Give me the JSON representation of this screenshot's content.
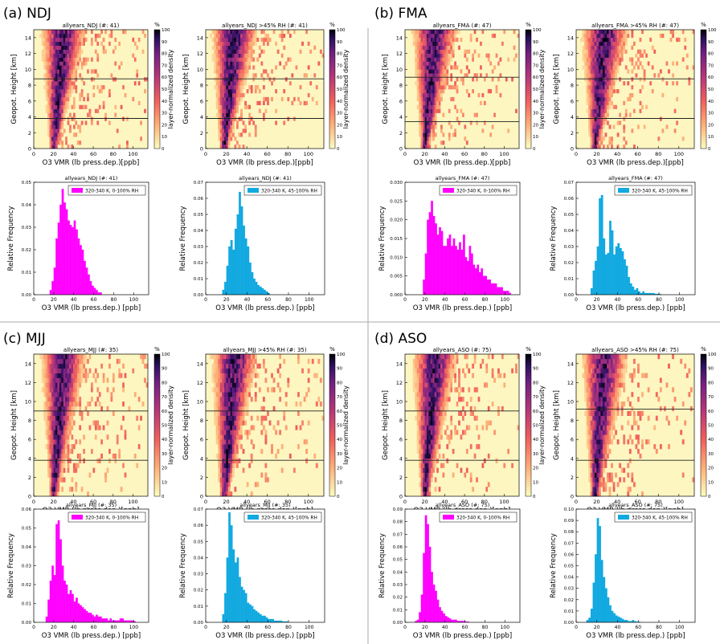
{
  "colors": {
    "magenta": "#ff00ff",
    "cyan": "#11a9e0",
    "heat_bg": "#fdf6c0"
  },
  "common": {
    "heat_xlabel": "O3 VMR (lb press.dep.)[ppb]",
    "heat_ylabel": "Geopot. Height [km]",
    "cbar_label": "layer-normalized density",
    "cbar_unit": "%",
    "cbar_ticks": [
      "0",
      "10",
      "20",
      "30",
      "40",
      "50",
      "60",
      "70",
      "80",
      "90",
      "100"
    ],
    "heat_xticks": [
      "0",
      "20",
      "40",
      "60",
      "80",
      "100"
    ],
    "heat_yticks": [
      "0",
      "2",
      "4",
      "6",
      "8",
      "10",
      "12",
      "14"
    ],
    "hist_xlabel": "O3 VMR (lb press.dep.) [ppb]",
    "hist_ylabel": "Relative Frequency",
    "hist_xticks": [
      "0",
      "20",
      "40",
      "60",
      "80",
      "100"
    ]
  },
  "chart_data": [
    {
      "type": "heatmap",
      "panel": "(a) NDJ",
      "title": "allyears_NDJ (#: 41)",
      "xlim": [
        0,
        115
      ],
      "ylim": [
        0,
        15
      ],
      "colorscale": "magma_r",
      "hlines_km": [
        8.8,
        3.8
      ]
    },
    {
      "type": "heatmap",
      "panel": "(a) NDJ",
      "title": "allyears_NDJ >45% RH (#: 41)",
      "xlim": [
        0,
        115
      ],
      "ylim": [
        0,
        15
      ],
      "colorscale": "magma_r",
      "hlines_km": [
        8.8,
        3.8
      ]
    },
    {
      "type": "bar",
      "panel": "(a) NDJ",
      "title": "allyears_NDJ (#: 41)",
      "legend": "320-340 K, 0-100% RH",
      "color": "magenta",
      "xlim": [
        0,
        115
      ],
      "ylim": [
        0,
        0.05
      ],
      "yticks": [
        "0.00",
        "0.01",
        "0.02",
        "0.03",
        "0.04",
        "0.05"
      ],
      "x": [
        16,
        18,
        20,
        22,
        24,
        26,
        28,
        30,
        32,
        34,
        36,
        38,
        40,
        42,
        44,
        46,
        48,
        50,
        52,
        54,
        56,
        58,
        60,
        62,
        64,
        66
      ],
      "values": [
        0.002,
        0.006,
        0.012,
        0.025,
        0.032,
        0.04,
        0.047,
        0.041,
        0.038,
        0.033,
        0.031,
        0.03,
        0.033,
        0.029,
        0.025,
        0.022,
        0.02,
        0.015,
        0.012,
        0.009,
        0.006,
        0.004,
        0.003,
        0.002,
        0.001,
        0.001
      ]
    },
    {
      "type": "bar",
      "panel": "(a) NDJ",
      "title": "allyears_NDJ (#: 41)",
      "legend": "320-340 K, 45-100% RH",
      "color": "cyan",
      "xlim": [
        0,
        115
      ],
      "ylim": [
        0,
        0.07
      ],
      "yticks": [
        "0.00",
        "0.01",
        "0.02",
        "0.03",
        "0.04",
        "0.05",
        "0.06",
        "0.07"
      ],
      "x": [
        16,
        18,
        20,
        22,
        24,
        26,
        28,
        30,
        32,
        34,
        36,
        38,
        40,
        42,
        44,
        46,
        48,
        50,
        52,
        54,
        56,
        58,
        60
      ],
      "values": [
        0.003,
        0.008,
        0.018,
        0.03,
        0.034,
        0.028,
        0.041,
        0.05,
        0.064,
        0.055,
        0.043,
        0.035,
        0.03,
        0.02,
        0.014,
        0.01,
        0.008,
        0.006,
        0.005,
        0.004,
        0.003,
        0.002,
        0.001
      ]
    },
    {
      "type": "heatmap",
      "panel": "(b) FMA",
      "title": "allyears_FMA (#: 47)",
      "xlim": [
        0,
        115
      ],
      "ylim": [
        0,
        15
      ],
      "colorscale": "magma_r",
      "hlines_km": [
        9.0,
        3.4
      ]
    },
    {
      "type": "heatmap",
      "panel": "(b) FMA",
      "title": "allyears_FMA >45% RH (#: 47)",
      "xlim": [
        0,
        115
      ],
      "ylim": [
        0,
        15
      ],
      "colorscale": "magma_r",
      "hlines_km": [
        8.8,
        3.8
      ]
    },
    {
      "type": "bar",
      "panel": "(b) FMA",
      "title": "allyears_FMA (#: 47)",
      "legend": "320-340 K, 0-100% RH",
      "color": "magenta",
      "xlim": [
        0,
        115
      ],
      "ylim": [
        0,
        0.03
      ],
      "yticks": [
        "0.000",
        "0.005",
        "0.010",
        "0.015",
        "0.020",
        "0.025",
        "0.030"
      ],
      "x": [
        18,
        20,
        22,
        24,
        26,
        28,
        30,
        32,
        34,
        36,
        38,
        40,
        42,
        44,
        46,
        48,
        50,
        52,
        54,
        56,
        58,
        60,
        62,
        64,
        66,
        68,
        70,
        72,
        74,
        76,
        78,
        80,
        82,
        84,
        86,
        88,
        90,
        92,
        94,
        96,
        98,
        100,
        102,
        104
      ],
      "values": [
        0.004,
        0.011,
        0.02,
        0.022,
        0.025,
        0.021,
        0.019,
        0.016,
        0.018,
        0.017,
        0.013,
        0.013,
        0.015,
        0.016,
        0.013,
        0.015,
        0.013,
        0.012,
        0.014,
        0.012,
        0.016,
        0.01,
        0.009,
        0.013,
        0.011,
        0.008,
        0.007,
        0.008,
        0.006,
        0.007,
        0.005,
        0.005,
        0.004,
        0.004,
        0.003,
        0.003,
        0.003,
        0.002,
        0.002,
        0.002,
        0.001,
        0.001,
        0.001,
        0.0005
      ]
    },
    {
      "type": "bar",
      "panel": "(b) FMA",
      "title": "allyears_FMA (#: 47)",
      "legend": "320-340 K, 45-100% RH",
      "color": "cyan",
      "xlim": [
        0,
        115
      ],
      "ylim": [
        0,
        0.07
      ],
      "yticks": [
        "0.00",
        "0.01",
        "0.02",
        "0.03",
        "0.04",
        "0.05",
        "0.06",
        "0.07"
      ],
      "x": [
        14,
        16,
        18,
        20,
        22,
        24,
        26,
        28,
        30,
        32,
        34,
        36,
        38,
        40,
        42,
        44,
        46,
        48,
        50,
        52,
        54,
        56,
        58,
        60,
        62,
        64,
        66,
        68,
        70,
        72,
        74,
        76,
        78,
        80
      ],
      "values": [
        0.004,
        0.015,
        0.021,
        0.03,
        0.06,
        0.062,
        0.035,
        0.025,
        0.026,
        0.046,
        0.04,
        0.025,
        0.03,
        0.032,
        0.029,
        0.027,
        0.022,
        0.018,
        0.011,
        0.007,
        0.005,
        0.003,
        0.004,
        0.002,
        0.001,
        0.002,
        0.001,
        0.001,
        0.001,
        0.001,
        0.001,
        0.0005,
        0.0005,
        0.0005
      ]
    },
    {
      "type": "heatmap",
      "panel": "(c) MJJ",
      "title": "allyears_MJJ (#: 35)",
      "xlim": [
        0,
        115
      ],
      "ylim": [
        0,
        15
      ],
      "colorscale": "magma_r",
      "hlines_km": [
        9.0,
        3.8
      ]
    },
    {
      "type": "heatmap",
      "panel": "(c) MJJ",
      "title": "allyears_MJJ >45% RH (#: 35)",
      "xlim": [
        0,
        115
      ],
      "ylim": [
        0,
        15
      ],
      "colorscale": "magma_r",
      "hlines_km": [
        9.0,
        3.8
      ]
    },
    {
      "type": "bar",
      "panel": "(c) MJJ",
      "title": "allyears_MJJ (#: 35)",
      "legend": "320-340 K, 0-100% RH",
      "color": "magenta",
      "xlim": [
        0,
        115
      ],
      "ylim": [
        0,
        0.06
      ],
      "yticks": [
        "0.00",
        "0.01",
        "0.02",
        "0.03",
        "0.04",
        "0.05",
        "0.06"
      ],
      "x": [
        12,
        14,
        16,
        18,
        20,
        22,
        24,
        26,
        28,
        30,
        32,
        34,
        36,
        38,
        40,
        42,
        44,
        46,
        48,
        50,
        52,
        54,
        56,
        58,
        60,
        62,
        64,
        66,
        68,
        70,
        72,
        74,
        76,
        78,
        80,
        82,
        84,
        86,
        88,
        90,
        92,
        94,
        96,
        98,
        100
      ],
      "values": [
        0.003,
        0.012,
        0.022,
        0.03,
        0.025,
        0.052,
        0.054,
        0.044,
        0.03,
        0.022,
        0.02,
        0.015,
        0.017,
        0.015,
        0.011,
        0.013,
        0.01,
        0.009,
        0.008,
        0.007,
        0.006,
        0.005,
        0.005,
        0.004,
        0.003,
        0.004,
        0.003,
        0.003,
        0.002,
        0.002,
        0.002,
        0.001,
        0.002,
        0.001,
        0.001,
        0.001,
        0.001,
        0.002,
        0.002,
        0.001,
        0.001,
        0.001,
        0.001,
        0.001,
        0.0005
      ]
    },
    {
      "type": "bar",
      "panel": "(c) MJJ",
      "title": "allyears_MJJ (#: 35)",
      "legend": "320-340 K, 45-100% RH",
      "color": "cyan",
      "xlim": [
        0,
        115
      ],
      "ylim": [
        0,
        0.07
      ],
      "yticks": [
        "0.00",
        "0.01",
        "0.02",
        "0.03",
        "0.04",
        "0.05",
        "0.06",
        "0.07"
      ],
      "x": [
        16,
        18,
        20,
        22,
        24,
        26,
        28,
        30,
        32,
        34,
        36,
        38,
        40,
        42,
        44,
        46,
        48,
        50,
        52,
        54,
        56,
        58,
        60,
        62,
        64,
        66,
        68,
        70,
        72,
        74,
        76,
        78
      ],
      "values": [
        0.005,
        0.018,
        0.04,
        0.068,
        0.06,
        0.045,
        0.037,
        0.04,
        0.028,
        0.022,
        0.02,
        0.018,
        0.012,
        0.011,
        0.01,
        0.008,
        0.007,
        0.006,
        0.005,
        0.004,
        0.004,
        0.003,
        0.002,
        0.002,
        0.002,
        0.001,
        0.001,
        0.001,
        0.001,
        0.0005,
        0.0005,
        0.0005
      ]
    },
    {
      "type": "heatmap",
      "panel": "(d) ASO",
      "title": "allyears_ASO (#: 75)",
      "xlim": [
        0,
        115
      ],
      "ylim": [
        0,
        15
      ],
      "colorscale": "magma_r",
      "hlines_km": [
        9.0,
        3.8
      ]
    },
    {
      "type": "heatmap",
      "panel": "(d) ASO",
      "title": "allyears_ASO >45% RH (#: 75)",
      "xlim": [
        0,
        115
      ],
      "ylim": [
        0,
        15
      ],
      "colorscale": "magma_r",
      "hlines_km": [
        9.2,
        3.8
      ]
    },
    {
      "type": "bar",
      "panel": "(d) ASO",
      "title": "allyears_ASO (#: 75)",
      "legend": "320-340 K, 0-100% RH",
      "color": "magenta",
      "xlim": [
        0,
        115
      ],
      "ylim": [
        0,
        0.09
      ],
      "yticks": [
        "0.00",
        "0.01",
        "0.02",
        "0.03",
        "0.04",
        "0.05",
        "0.06",
        "0.07",
        "0.08",
        "0.09"
      ],
      "x": [
        10,
        12,
        14,
        16,
        18,
        20,
        22,
        24,
        26,
        28,
        30,
        32,
        34,
        36,
        38,
        40,
        42,
        44,
        46,
        48,
        50,
        52,
        54,
        56,
        58,
        60,
        62
      ],
      "values": [
        0.001,
        0.002,
        0.008,
        0.022,
        0.055,
        0.085,
        0.078,
        0.06,
        0.04,
        0.03,
        0.025,
        0.018,
        0.012,
        0.009,
        0.007,
        0.005,
        0.004,
        0.003,
        0.002,
        0.002,
        0.002,
        0.001,
        0.001,
        0.001,
        0.001,
        0.0005,
        0.0005
      ]
    },
    {
      "type": "bar",
      "panel": "(d) ASO",
      "title": "allyears_ASO (#: 75)",
      "legend": "320-340 K, 45-100% RH",
      "color": "cyan",
      "xlim": [
        0,
        115
      ],
      "ylim": [
        0,
        0.1
      ],
      "yticks": [
        "0.00",
        "0.01",
        "0.02",
        "0.03",
        "0.04",
        "0.05",
        "0.06",
        "0.07",
        "0.08",
        "0.09",
        "0.10"
      ],
      "x": [
        10,
        12,
        14,
        16,
        18,
        20,
        22,
        24,
        26,
        28,
        30,
        32,
        34,
        36,
        38,
        40,
        42,
        44,
        46,
        48,
        50,
        52,
        54,
        56,
        58,
        60
      ],
      "values": [
        0.002,
        0.004,
        0.012,
        0.035,
        0.06,
        0.092,
        0.085,
        0.055,
        0.04,
        0.03,
        0.022,
        0.015,
        0.01,
        0.008,
        0.006,
        0.005,
        0.004,
        0.003,
        0.002,
        0.002,
        0.001,
        0.001,
        0.002,
        0.001,
        0.0005,
        0.0005
      ]
    }
  ],
  "panel_labels": [
    "(a) NDJ",
    "(b) FMA",
    "(c) MJJ",
    "(d) ASO"
  ]
}
